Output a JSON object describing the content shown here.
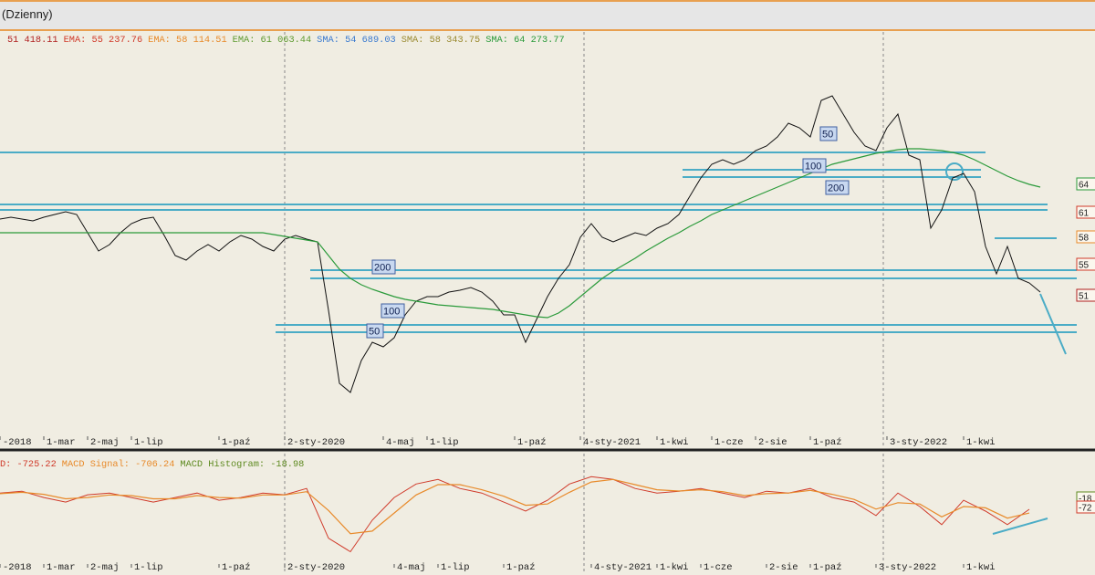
{
  "window_title": "(Dzienny)",
  "chart_data": [
    {
      "type": "line",
      "legend": [
        {
          "label": "51 418.11",
          "color": "#b02020"
        },
        {
          "label": "EMA: 55 237.76",
          "color": "#d03a2a"
        },
        {
          "label": "EMA: 58 114.51",
          "color": "#e88a2a"
        },
        {
          "label": "EMA: 61 063.44",
          "color": "#5e9a30"
        },
        {
          "label": "SMA: 54 689.03",
          "color": "#3a7ad0"
        },
        {
          "label": "SMA: 58 343.75",
          "color": "#9a8a30"
        },
        {
          "label": "SMA: 64 273.77",
          "color": "#2a9a3a"
        }
      ],
      "categories": [
        "-2018",
        null,
        null,
        null,
        "1-mar",
        null,
        null,
        null,
        "2-maj",
        null,
        null,
        null,
        "1-lip",
        null,
        null,
        null,
        null,
        null,
        null,
        null,
        "1-paź",
        null,
        null,
        null,
        null,
        null,
        "2-sty-2020",
        null,
        null,
        null,
        null,
        null,
        null,
        null,
        null,
        "4-maj",
        null,
        null,
        null,
        "1-lip",
        null,
        null,
        null,
        null,
        null,
        null,
        null,
        "1-paź",
        null,
        null,
        null,
        null,
        null,
        "4-sty-2021",
        null,
        null,
        null,
        null,
        null,
        null,
        "1-kwi",
        null,
        null,
        null,
        null,
        "1-cze",
        null,
        null,
        null,
        "2-sie",
        null,
        null,
        null,
        null,
        "1-paź",
        null,
        null,
        null,
        null,
        null,
        null,
        "3-sty-2022",
        null,
        null,
        null,
        null,
        null,
        null,
        "1-kwi",
        null,
        null,
        null,
        null,
        null,
        null,
        null
      ],
      "series": [
        {
          "color": "#111111",
          "values": [
            59500,
            59700,
            59500,
            59300,
            59700,
            60000,
            60300,
            60000,
            58000,
            56000,
            56700,
            58000,
            59000,
            59500,
            59700,
            57700,
            55500,
            55000,
            56000,
            56700,
            56000,
            57000,
            57700,
            57300,
            56500,
            56000,
            57300,
            57700,
            57300,
            57000,
            49500,
            41500,
            40500,
            44000,
            46000,
            45500,
            46500,
            49000,
            50500,
            51000,
            51000,
            51500,
            51700,
            52000,
            51500,
            50500,
            49000,
            49000,
            46000,
            48500,
            51000,
            53000,
            54500,
            57500,
            59000,
            57500,
            57000,
            57500,
            58000,
            57700,
            58500,
            59000,
            60000,
            62000,
            64000,
            65500,
            66000,
            65500,
            66000,
            67000,
            67500,
            68500,
            70000,
            69500,
            68500,
            72500,
            73000,
            71000,
            69000,
            67500,
            67000,
            69500,
            71000,
            66500,
            66000,
            58500,
            60500,
            64000,
            64500,
            62500,
            56500,
            53500,
            56500,
            53000,
            52500,
            51500
          ]
        },
        {
          "color": "#2a9a3a",
          "values": [
            58000,
            58000,
            58000,
            58000,
            58000,
            58000,
            58000,
            58000,
            58000,
            58000,
            58000,
            58000,
            58000,
            58000,
            58000,
            58000,
            58000,
            58000,
            58000,
            58000,
            58000,
            58000,
            58000,
            58000,
            58000,
            57800,
            57600,
            57400,
            57200,
            57000,
            55500,
            54000,
            53000,
            52300,
            51800,
            51400,
            51000,
            50700,
            50500,
            50300,
            50100,
            50000,
            49900,
            49800,
            49700,
            49600,
            49400,
            49200,
            49000,
            48800,
            48700,
            49200,
            50000,
            51000,
            52000,
            53000,
            53800,
            54500,
            55200,
            56000,
            56700,
            57400,
            58000,
            58700,
            59300,
            60000,
            60500,
            61000,
            61500,
            62000,
            62500,
            63000,
            63500,
            64000,
            64500,
            65000,
            65500,
            65800,
            66100,
            66400,
            66700,
            66900,
            67100,
            67200,
            67200,
            67100,
            67000,
            66800,
            66500,
            66000,
            65400,
            64800,
            64200,
            63700,
            63300,
            63000
          ]
        }
      ],
      "ylim": [
        34500,
        80000
      ],
      "levels": {
        "color": "#4bacc6",
        "values": [
          66800,
          64900,
          64100,
          61100,
          60500,
          57400,
          53900,
          53000,
          47900,
          47100
        ]
      },
      "annotations": [
        "200",
        "100",
        "50",
        "100",
        "200",
        "50"
      ],
      "right_labels": [
        {
          "label": "64",
          "color": "#2a9a3a"
        },
        {
          "label": "61",
          "color": "#d03a2a"
        },
        {
          "label": "58",
          "color": "#e88a2a"
        },
        {
          "label": "55",
          "color": "#d03a2a"
        },
        {
          "label": "51",
          "color": "#b02020"
        }
      ]
    },
    {
      "type": "line",
      "legend": [
        {
          "label": "D: -725.22",
          "color": "#d03a2a"
        },
        {
          "label": "MACD Signal: -706.24",
          "color": "#e88a2a"
        },
        {
          "label": "MACD Histogram: -18.98",
          "color": "#5e8a20"
        }
      ],
      "categories": [
        "-2018",
        null,
        "1-mar",
        null,
        "2-maj",
        null,
        "1-lip",
        null,
        null,
        null,
        "1-paź",
        null,
        null,
        "2-sty-2020",
        null,
        null,
        null,
        null,
        "4-maj",
        null,
        "1-lip",
        null,
        null,
        "1-paź",
        null,
        null,
        null,
        "4-sty-2021",
        null,
        null,
        "1-kwi",
        null,
        "1-cze",
        null,
        null,
        "2-sie",
        null,
        "1-paź",
        null,
        null,
        "3-sty-2022",
        null,
        null,
        null,
        "1-kwi",
        null,
        null,
        null
      ],
      "series": [
        {
          "color": "#d03a2a",
          "values": [
            350,
            490,
            0,
            -350,
            210,
            350,
            0,
            -350,
            0,
            350,
            -210,
            0,
            350,
            210,
            700,
            -3150,
            -4200,
            -1750,
            0,
            1050,
            1400,
            700,
            350,
            -350,
            -1050,
            -210,
            1050,
            1610,
            1400,
            700,
            350,
            490,
            700,
            350,
            0,
            490,
            350,
            700,
            0,
            -350,
            -1400,
            350,
            -700,
            -2100,
            -210,
            -1050,
            -2100,
            -910
          ]
        },
        {
          "color": "#e88a2a",
          "values": [
            300,
            400,
            250,
            -100,
            0,
            200,
            150,
            -100,
            -100,
            150,
            0,
            -50,
            200,
            200,
            450,
            -1000,
            -2800,
            -2600,
            -1200,
            200,
            1000,
            1000,
            600,
            100,
            -600,
            -500,
            400,
            1200,
            1400,
            1000,
            600,
            500,
            600,
            450,
            150,
            300,
            350,
            550,
            250,
            -150,
            -900,
            -400,
            -500,
            -1500,
            -700,
            -800,
            -1600,
            -1200
          ]
        }
      ],
      "ylim": [
        -6000,
        3400
      ],
      "right_labels": [
        {
          "label": "-18",
          "color": "#5e8a20"
        },
        {
          "label": "-72",
          "color": "#d03a2a"
        }
      ]
    }
  ]
}
